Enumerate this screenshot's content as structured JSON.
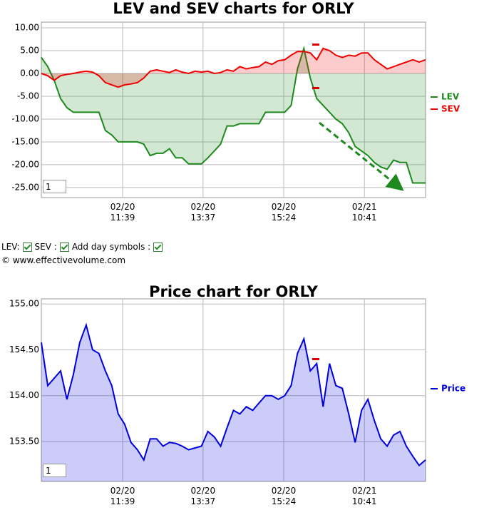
{
  "chart_data": [
    {
      "type": "line",
      "title": "LEV and SEV charts for ORLY",
      "x": [
        0,
        2,
        4,
        6,
        8,
        10,
        12,
        14,
        16,
        18,
        20,
        22,
        24,
        26,
        28,
        30,
        32,
        34,
        36,
        38,
        40,
        42,
        44,
        46,
        48,
        50,
        52,
        54,
        56,
        58,
        60,
        62,
        64,
        66,
        68,
        70,
        72,
        74,
        76,
        78,
        80,
        82,
        84,
        86,
        88,
        90,
        92,
        94,
        96,
        98,
        100,
        102,
        104,
        106,
        108,
        110,
        112,
        114,
        116,
        118,
        120
      ],
      "series": [
        {
          "name": "LEV",
          "color": "#1e8a1e",
          "values": [
            3.5,
            1.5,
            -1.5,
            -5.5,
            -7.5,
            -8.5,
            -8.5,
            -8.5,
            -8.5,
            -8.5,
            -12.5,
            -13.5,
            -15,
            -15,
            -15,
            -15,
            -15.5,
            -18,
            -17.5,
            -17.5,
            -16.5,
            -18.5,
            -18.5,
            -19.8,
            -19.8,
            -19.8,
            -18.5,
            -17,
            -15.5,
            -11.5,
            -11.5,
            -11,
            -11,
            -11,
            -11,
            -8.5,
            -8.5,
            -8.5,
            -8.5,
            -7,
            1,
            5.5,
            -1,
            -5.5,
            -7,
            -8.5,
            -10,
            -11,
            -13,
            -16,
            -17,
            -18,
            -19.5,
            -20.5,
            -21,
            -19,
            -19.5,
            -19.5,
            -24,
            -24,
            -24
          ]
        },
        {
          "name": "SEV",
          "color": "#ee0000",
          "values": [
            0,
            -0.5,
            -1.5,
            -0.5,
            -0.2,
            0,
            0.3,
            0.5,
            0.3,
            -0.5,
            -2,
            -2.5,
            -3,
            -2.5,
            -2.3,
            -2,
            -1,
            0.5,
            0.8,
            0.5,
            0.2,
            0.8,
            0.3,
            0,
            0.5,
            0.3,
            0.5,
            0,
            0.2,
            0.8,
            0.5,
            1.5,
            1,
            1.3,
            1.5,
            2.5,
            2,
            2.8,
            3,
            4,
            4.8,
            4.8,
            4.5,
            3,
            5.5,
            5,
            4,
            3.5,
            4,
            3.8,
            4.5,
            4.5,
            3,
            2,
            1,
            1.5,
            2,
            2.5,
            3,
            2.5,
            3
          ]
        }
      ],
      "xlim": [
        0,
        120
      ],
      "ylim": [
        -27.2,
        11.25
      ],
      "xticks": [
        {
          "value": 25.4,
          "label": "02/20\n11:39"
        },
        {
          "value": 50.5,
          "label": "02/20\n13:37"
        },
        {
          "value": 75.7,
          "label": "02/20\n15:24"
        },
        {
          "value": 100.9,
          "label": "02/21\n10:41"
        }
      ],
      "yticks": [
        {
          "value": 10,
          "label": "10.00"
        },
        {
          "value": 5,
          "label": "5.00"
        },
        {
          "value": 0,
          "label": "0.00"
        },
        {
          "value": -5,
          "label": "-5.00"
        },
        {
          "value": -10,
          "label": "-10.00"
        },
        {
          "value": -15,
          "label": "-15.00"
        },
        {
          "value": -20,
          "label": "-20.00"
        },
        {
          "value": -25,
          "label": "-25.00"
        }
      ],
      "grid": true,
      "legend": "right",
      "fill": true
    },
    {
      "type": "line",
      "title": "Price chart for ORLY",
      "x": [
        0,
        2,
        4,
        6,
        8,
        10,
        12,
        14,
        16,
        18,
        20,
        22,
        24,
        26,
        28,
        30,
        32,
        34,
        36,
        38,
        40,
        42,
        44,
        46,
        48,
        50,
        52,
        54,
        56,
        58,
        60,
        62,
        64,
        66,
        68,
        70,
        72,
        74,
        76,
        78,
        80,
        82,
        84,
        86,
        88,
        90,
        92,
        94,
        96,
        98,
        100,
        102,
        104,
        106,
        108,
        110,
        112,
        114,
        116,
        118,
        120
      ],
      "series": [
        {
          "name": "Price",
          "color": "#0000dd",
          "values": [
            154.58,
            154.11,
            154.19,
            154.27,
            153.96,
            154.23,
            154.58,
            154.77,
            154.5,
            154.46,
            154.27,
            154.11,
            153.8,
            153.69,
            153.49,
            153.41,
            153.3,
            153.53,
            153.53,
            153.45,
            153.49,
            153.48,
            153.45,
            153.41,
            153.43,
            153.45,
            153.61,
            153.55,
            153.45,
            153.65,
            153.84,
            153.8,
            153.88,
            153.84,
            153.92,
            154,
            154,
            153.96,
            154,
            154.11,
            154.46,
            154.62,
            154.27,
            154.35,
            153.88,
            154.35,
            154.11,
            154.08,
            153.8,
            153.49,
            153.84,
            153.96,
            153.73,
            153.53,
            153.45,
            153.57,
            153.61,
            153.45,
            153.34,
            153.24,
            153.3
          ]
        }
      ],
      "xlim": [
        0,
        120
      ],
      "ylim": [
        153.065,
        155.055
      ],
      "xticks": [
        {
          "value": 25.4,
          "label": "02/20\n11:39"
        },
        {
          "value": 50.5,
          "label": "02/20\n13:37"
        },
        {
          "value": 75.7,
          "label": "02/20\n15:24"
        },
        {
          "value": 100.9,
          "label": "02/21\n10:41"
        }
      ],
      "yticks": [
        {
          "value": 155,
          "label": "155.00"
        },
        {
          "value": 154.5,
          "label": "154.50"
        },
        {
          "value": 154,
          "label": "154.00"
        },
        {
          "value": 153.5,
          "label": "153.50"
        }
      ],
      "grid": true,
      "legend": "right",
      "fill": true
    }
  ],
  "controls": {
    "lev": "LEV:",
    "sev": "SEV :",
    "day_symbols": "Add day symbols :"
  },
  "copyright": "© www.effectivevolume.com",
  "range_inputs": [
    "1",
    "1"
  ]
}
